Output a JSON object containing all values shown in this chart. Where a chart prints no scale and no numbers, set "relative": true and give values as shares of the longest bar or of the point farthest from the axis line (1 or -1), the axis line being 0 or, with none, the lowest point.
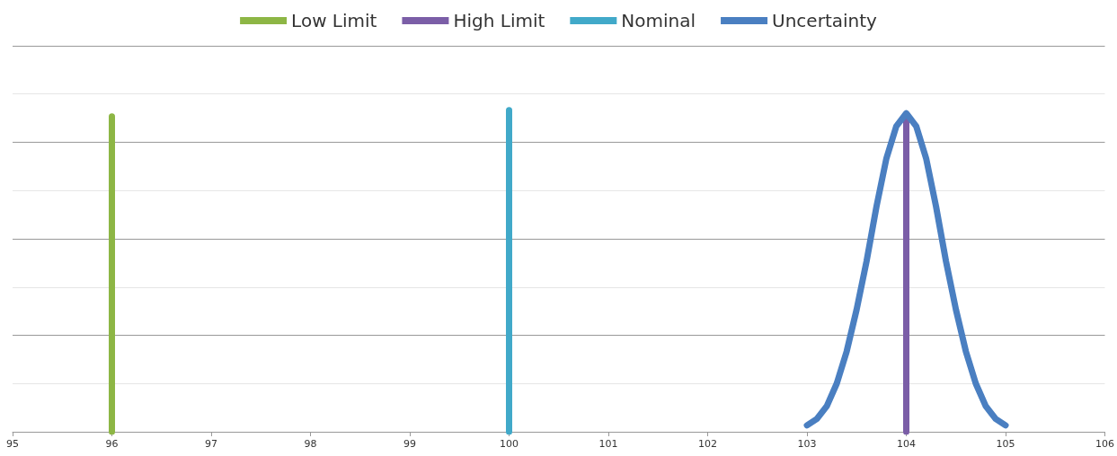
{
  "chart_data": {
    "type": "line",
    "relative": true,
    "legend": "top",
    "grid": "y",
    "marker": "none",
    "line_style": "solid",
    "xlim": [
      95,
      106
    ],
    "xticks": [
      95,
      96,
      97,
      98,
      99,
      100,
      101,
      102,
      103,
      104,
      105,
      106
    ],
    "series": [
      {
        "name": "Low Limit",
        "color": "#8db645",
        "x": [
          96,
          96
        ],
        "values": [
          0,
          0.98
        ]
      },
      {
        "name": "High Limit",
        "color": "#7b5ea7",
        "x": [
          104,
          104
        ],
        "values": [
          0,
          0.97
        ]
      },
      {
        "name": "Nominal",
        "color": "#41a9c9",
        "x": [
          100,
          100
        ],
        "values": [
          0,
          1
        ]
      },
      {
        "name": "Uncertainty",
        "color": "#4a7fc1",
        "x": [
          103,
          103.1,
          103.2,
          103.3,
          103.4,
          103.5,
          103.6,
          103.7,
          103.8,
          103.9,
          104,
          104.1,
          104.2,
          104.3,
          104.4,
          104.5,
          104.6,
          104.7,
          104.8,
          104.9,
          105
        ],
        "values": [
          0.02,
          0.04,
          0.08,
          0.15,
          0.25,
          0.38,
          0.53,
          0.7,
          0.85,
          0.95,
          0.99,
          0.95,
          0.85,
          0.7,
          0.53,
          0.38,
          0.25,
          0.15,
          0.08,
          0.04,
          0.02
        ]
      }
    ]
  }
}
